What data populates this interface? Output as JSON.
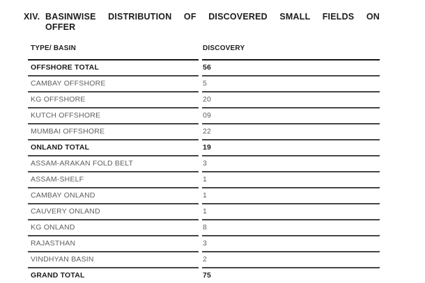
{
  "title": {
    "number": "XIV.",
    "line1": "BASINWISE DISTRIBUTION OF DISCOVERED SMALL FIELDS ON",
    "line2": "OFFER"
  },
  "table": {
    "columns": [
      "TYPE/ BASIN",
      "DISCOVERY"
    ],
    "rows": [
      {
        "basin": "OFFSHORE TOTAL",
        "discovery": "56",
        "bold": true
      },
      {
        "basin": "CAMBAY OFFSHORE",
        "discovery": "5",
        "bold": false
      },
      {
        "basin": "KG OFFSHORE",
        "discovery": "20",
        "bold": false
      },
      {
        "basin": "KUTCH OFFSHORE",
        "discovery": "09",
        "bold": false
      },
      {
        "basin": "MUMBAI OFFSHORE",
        "discovery": "22",
        "bold": false
      },
      {
        "basin": "ONLAND TOTAL",
        "discovery": "19",
        "bold": true
      },
      {
        "basin": "ASSAM-ARAKAN FOLD BELT",
        "discovery": "3",
        "bold": false
      },
      {
        "basin": "ASSAM-SHELF",
        "discovery": "1",
        "bold": false
      },
      {
        "basin": "CAMBAY ONLAND",
        "discovery": "1",
        "bold": false
      },
      {
        "basin": "CAUVERY ONLAND",
        "discovery": "1",
        "bold": false
      },
      {
        "basin": "KG ONLAND",
        "discovery": "8",
        "bold": false
      },
      {
        "basin": "RAJASTHAN",
        "discovery": "3",
        "bold": false
      },
      {
        "basin": "VINDHYAN BASIN",
        "discovery": "2",
        "bold": false
      },
      {
        "basin": "GRAND TOTAL",
        "discovery": "75",
        "bold": true
      }
    ]
  },
  "colors": {
    "text_primary": "#1c1c1c",
    "text_secondary": "#5f5f5f",
    "rule": "#454545",
    "rule_strong": "#161616",
    "background": "#ffffff"
  }
}
